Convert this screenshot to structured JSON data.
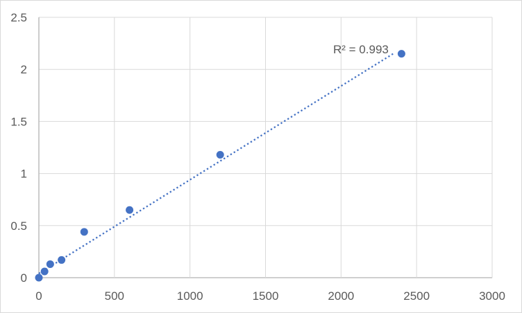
{
  "chart_data": {
    "type": "scatter",
    "title": "",
    "xlabel": "",
    "ylabel": "",
    "xlim": [
      0,
      3000
    ],
    "ylim": [
      0,
      2.5
    ],
    "xticks": [
      0,
      500,
      1000,
      1500,
      2000,
      2500,
      3000
    ],
    "yticks": [
      0,
      0.5,
      1,
      1.5,
      2,
      2.5
    ],
    "grid": true,
    "legend": "none",
    "points": [
      {
        "x": 0,
        "y": 0.0
      },
      {
        "x": 37.5,
        "y": 0.06
      },
      {
        "x": 75,
        "y": 0.13
      },
      {
        "x": 150,
        "y": 0.17
      },
      {
        "x": 300,
        "y": 0.44
      },
      {
        "x": 600,
        "y": 0.65
      },
      {
        "x": 1200,
        "y": 1.18
      },
      {
        "x": 2400,
        "y": 2.15
      }
    ],
    "trendline": {
      "style": "dotted",
      "slope": 0.0009,
      "intercept": 0.04,
      "x_start": 0,
      "x_end": 2345,
      "label": "R² = 0.993"
    },
    "colors": {
      "marker": "#4472C4",
      "trendline": "#4472C4",
      "grid": "#D9D9D9",
      "axis": "#BFBFBF",
      "text": "#595959",
      "border": "#D9D9D9",
      "background": "#FFFFFF"
    }
  }
}
